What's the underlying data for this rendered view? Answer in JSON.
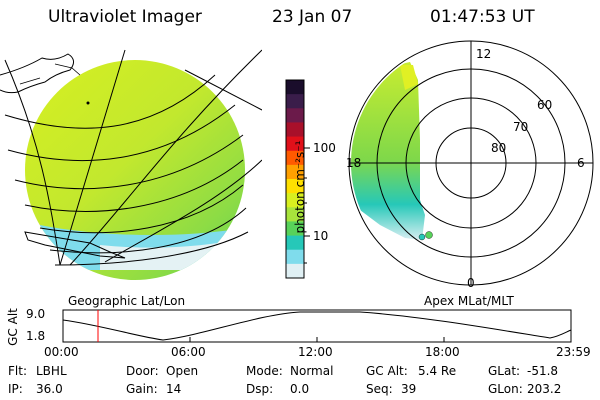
{
  "header": {
    "instrument": "Ultraviolet Imager",
    "date": "23 Jan 07",
    "time": "01:47:53 UT"
  },
  "colorbar": {
    "unit_label": "photon cm⁻²s⁻¹",
    "ticks": [
      "100",
      "10"
    ],
    "colors": [
      "#1a0d2b",
      "#3a1d4a",
      "#6b1a4a",
      "#a8102a",
      "#e0101a",
      "#ff5a00",
      "#ffa000",
      "#ffe000",
      "#d8f020",
      "#a8e43c",
      "#58d25a",
      "#26c8b8",
      "#7fdcec",
      "#e0f0f4"
    ]
  },
  "polar": {
    "hour_labels": [
      "12",
      "18",
      "6",
      "0"
    ],
    "lat_labels": [
      "60",
      "70",
      "80"
    ]
  },
  "maps": {
    "left_caption": "Geographic Lat/Lon",
    "right_caption": "Apex MLat/MLT"
  },
  "altitude_plot": {
    "ylabel": "GC Alt",
    "ymax": "9.0",
    "ymin": "1.8",
    "x_ticks": [
      "00:00",
      "06:00",
      "12:00",
      "18:00",
      "23:59"
    ],
    "marker_color": "#ff0000"
  },
  "info": {
    "filter_label": "Flt:",
    "filter_value": "LBHL",
    "door_label": "Door:",
    "door_value": "Open",
    "mode_label": "Mode:",
    "mode_value": "Normal",
    "gcalt_label": "GC Alt:",
    "gcalt_value": "5.4 Re",
    "glat_label": "GLat:",
    "glat_value": "-51.8",
    "ip_label": "IP:",
    "ip_value": "36.0",
    "gain_label": "Gain:",
    "gain_value": "14",
    "dsp_label": "Dsp:",
    "dsp_value": "0.0",
    "seq_label": "Seq:",
    "seq_value": "39",
    "glon_label": "GLon:",
    "glon_value": "203.2"
  }
}
